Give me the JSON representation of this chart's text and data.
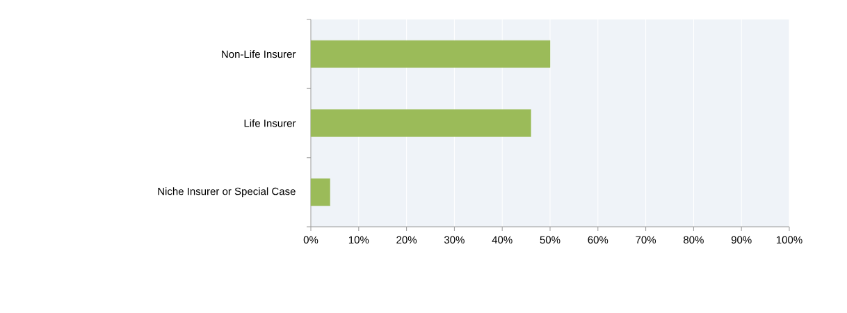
{
  "chart_data": {
    "type": "bar",
    "orientation": "horizontal",
    "categories": [
      "Non-Life Insurer",
      "Life Insurer",
      "Niche Insurer or Special Case"
    ],
    "values": [
      50,
      46,
      4
    ],
    "color": "#9bbb59",
    "xlim": [
      0,
      100
    ],
    "xticks": [
      {
        "value": 0,
        "label": "0%"
      },
      {
        "value": 10,
        "label": "10%"
      },
      {
        "value": 20,
        "label": "20%"
      },
      {
        "value": 30,
        "label": "30%"
      },
      {
        "value": 40,
        "label": "40%"
      },
      {
        "value": 50,
        "label": "50%"
      },
      {
        "value": 60,
        "label": "60%"
      },
      {
        "value": 70,
        "label": "70%"
      },
      {
        "value": 80,
        "label": "80%"
      },
      {
        "value": 90,
        "label": "90%"
      },
      {
        "value": 100,
        "label": "100%"
      }
    ],
    "grid": "x"
  }
}
